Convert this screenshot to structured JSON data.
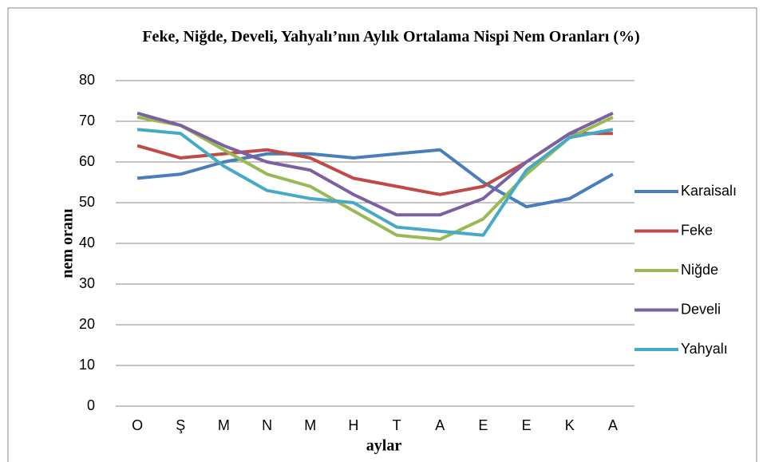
{
  "chart_data": {
    "type": "line",
    "title": "Feke, Niğde, Develi, Yahyalı’nın Aylık Ortalama Nispi Nem Oranları (%)",
    "x_label": "aylar",
    "y_label": "nem oranı",
    "categories": [
      "O",
      "Ş",
      "M",
      "N",
      "M",
      "H",
      "T",
      "A",
      "E",
      "E",
      "K",
      "A"
    ],
    "series": [
      {
        "name": "Karaisalı",
        "color": "#4a7ebb",
        "values": [
          56,
          57,
          60,
          62,
          62,
          61,
          62,
          63,
          55,
          49,
          51,
          57
        ]
      },
      {
        "name": "Feke",
        "color": "#be4b48",
        "values": [
          64,
          61,
          62,
          63,
          61,
          56,
          54,
          52,
          54,
          60,
          67,
          67
        ]
      },
      {
        "name": "Niğde",
        "color": "#98b954",
        "values": [
          71,
          69,
          63,
          57,
          54,
          48,
          42,
          41,
          46,
          57,
          66,
          71
        ]
      },
      {
        "name": "Develi",
        "color": "#7d60a0",
        "values": [
          72,
          69,
          64,
          60,
          58,
          52,
          47,
          47,
          51,
          60,
          67,
          72
        ]
      },
      {
        "name": "Yahyalı",
        "color": "#46aac5",
        "values": [
          68,
          67,
          59,
          53,
          51,
          50,
          44,
          43,
          42,
          58,
          66,
          68
        ]
      }
    ],
    "ylim": [
      0,
      80
    ],
    "yticks": [
      0,
      10,
      20,
      30,
      40,
      50,
      60,
      70,
      80
    ],
    "grid": true,
    "legend": "right"
  }
}
